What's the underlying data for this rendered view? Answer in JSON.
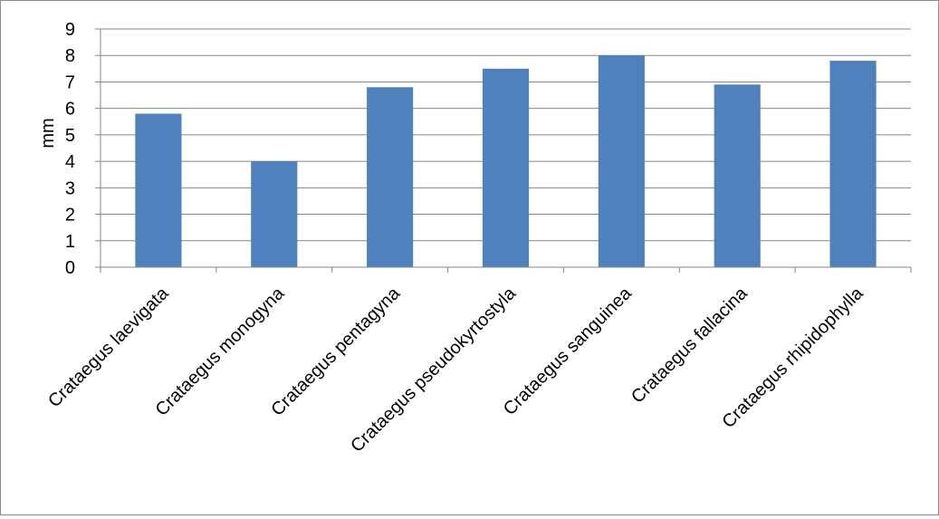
{
  "chart_data": {
    "type": "bar",
    "categories": [
      "Crataegus laevigata",
      "Crataegus monogyna",
      "Crataegus pentagyna",
      "Crataegus pseudokyrtostyla",
      "Crataegus sanguinea",
      "Crataegus fallacina",
      "Crataegus rhipidophylla"
    ],
    "values": [
      5.8,
      4.0,
      6.8,
      7.5,
      8.0,
      6.9,
      7.8
    ],
    "title": "",
    "xlabel": "",
    "ylabel": "mm",
    "ylim": [
      0,
      9
    ],
    "yticks": [
      "0",
      "1",
      "2",
      "3",
      "4",
      "5",
      "6",
      "7",
      "8",
      "9"
    ],
    "grid": true,
    "legend": "none",
    "bar_color": "#4f81bd",
    "grid_color": "#868686"
  }
}
